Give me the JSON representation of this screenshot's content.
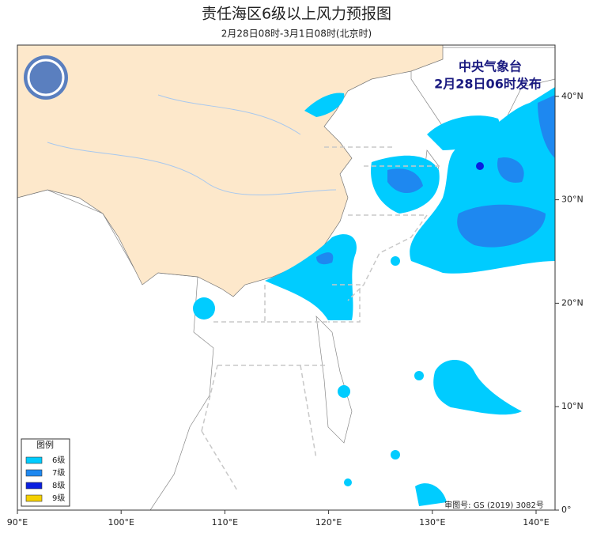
{
  "header": {
    "title": "责任海区6级以上风力预报图",
    "subtitle": "2月28日08时-3月1日08时(北京时)"
  },
  "stamp": {
    "agency": "中央气象台",
    "issued": "2月28日06时发布"
  },
  "legend": {
    "title": "图例",
    "items": [
      {
        "label": "6级",
        "color": "#00ccff"
      },
      {
        "label": "7级",
        "color": "#1e88f0"
      },
      {
        "label": "8级",
        "color": "#0a1fe0"
      },
      {
        "label": "9级",
        "color": "#f5d000"
      }
    ]
  },
  "axes": {
    "x_labels": [
      "90°E",
      "100°E",
      "110°E",
      "120°E",
      "130°E",
      "140°E"
    ],
    "y_labels": [
      "0°",
      "10°N",
      "20°N",
      "30°N",
      "40°N"
    ]
  },
  "footnote": "审图号: GS (2019) 3082号"
}
